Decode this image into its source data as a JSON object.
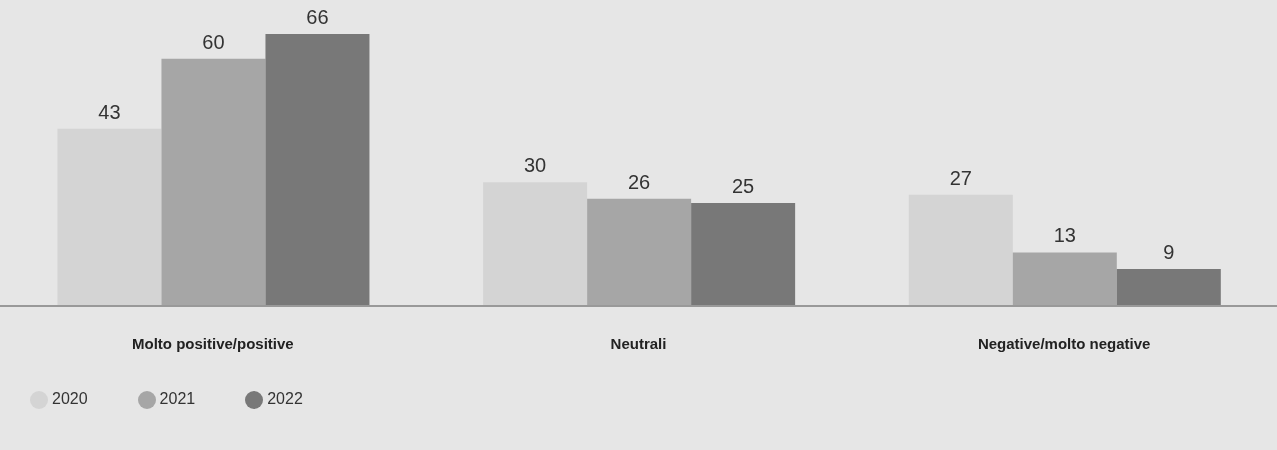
{
  "chart_data": {
    "type": "bar",
    "categories": [
      "Molto positive/positive",
      "Neutrali",
      "Negative/molto negative"
    ],
    "series": [
      {
        "name": "2020",
        "color": "#d4d4d4",
        "values": [
          43,
          30,
          27
        ]
      },
      {
        "name": "2021",
        "color": "#a6a6a6",
        "values": [
          60,
          26,
          13
        ]
      },
      {
        "name": "2022",
        "color": "#787878",
        "values": [
          66,
          25,
          9
        ]
      }
    ],
    "data_labels": true,
    "legend": "bottom left",
    "grid": false
  }
}
